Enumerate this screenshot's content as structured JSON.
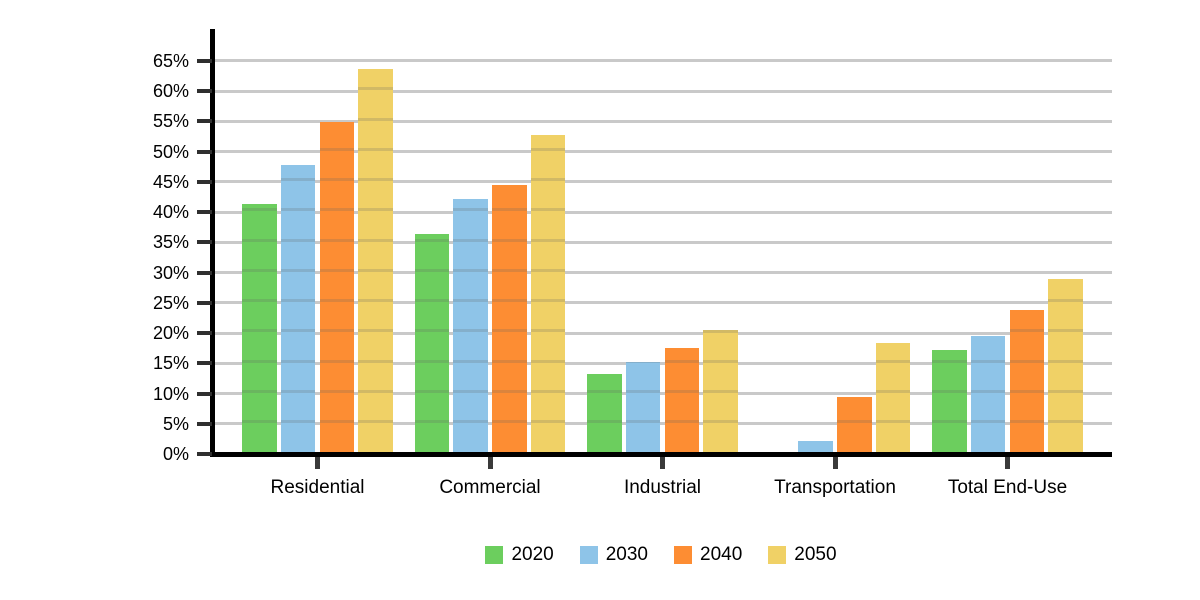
{
  "chart_data": {
    "type": "bar",
    "title": "",
    "xlabel": "",
    "ylabel": "",
    "categories": [
      "Residential",
      "Commercial",
      "Industrial",
      "Transportation",
      "Total End-Use"
    ],
    "series": [
      {
        "name": "2020",
        "color": "#6CCE5E",
        "values": [
          41.3,
          36.4,
          13.2,
          0,
          17.2
        ]
      },
      {
        "name": "2030",
        "color": "#8EC4E8",
        "values": [
          47.7,
          42.1,
          15.2,
          2.2,
          19.5
        ]
      },
      {
        "name": "2040",
        "color": "#FD8D33",
        "values": [
          54.9,
          44.4,
          17.5,
          9.4,
          23.8
        ]
      },
      {
        "name": "2050",
        "color": "#F0D166",
        "values": [
          63.7,
          52.8,
          20.5,
          18.4,
          29.0
        ]
      }
    ],
    "y_axis": {
      "min": 0,
      "max": 70,
      "tick_step": 5,
      "tick_labels": [
        "0%",
        "5%",
        "10%",
        "15%",
        "20%",
        "25%",
        "30%",
        "35%",
        "40%",
        "45%",
        "50%",
        "55%",
        "60%",
        "65%"
      ],
      "gridline_values": [
        5,
        10,
        15,
        20,
        25,
        30,
        35,
        40,
        45,
        50,
        55,
        60,
        65
      ]
    },
    "legend": {
      "position": "bottom",
      "entries": [
        "2020",
        "2030",
        "2040",
        "2050"
      ]
    },
    "grid": "horizontal",
    "colors": {
      "axis": "#000000",
      "gridline": "#C9C9C9",
      "y_tick": "#2F2F2F",
      "x_tick": "#3A3A3A",
      "background": "#FFFFFF"
    }
  }
}
